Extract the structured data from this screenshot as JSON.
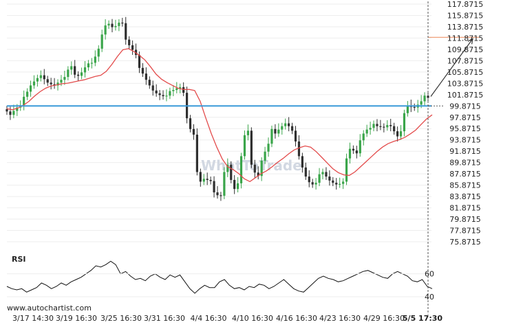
{
  "chart_data": [
    {
      "type": "candlestick",
      "title": "",
      "x_ticks": [
        "3/17 14:30",
        "3/19 16:30",
        "3/25 16:30",
        "3/31 16:30",
        "4/4 16:30",
        "4/10 16:30",
        "4/16 16:30",
        "4/23 16:30",
        "4/29 16:30",
        "5/5 17:30"
      ],
      "y_ticks": [
        "117.8715",
        "115.8715",
        "113.8715",
        "111.8715",
        "109.8715",
        "107.8715",
        "105.8715",
        "103.8715",
        "101.8715",
        "99.8715",
        "97.8715",
        "95.8715",
        "93.8715",
        "91.8715",
        "89.8715",
        "87.8715",
        "85.8715",
        "83.8715",
        "81.8715",
        "79.8715",
        "77.8715",
        "75.8715"
      ],
      "ylim": [
        75.8715,
        117.8715
      ],
      "price_series": [
        98.9,
        98.3,
        99.0,
        99.6,
        100.0,
        101.5,
        102.4,
        103.5,
        104.2,
        104.8,
        105.3,
        104.6,
        104.0,
        103.7,
        103.5,
        104.0,
        104.5,
        105.0,
        106.3,
        106.9,
        105.4,
        105.2,
        105.8,
        106.7,
        107.4,
        107.5,
        108.6,
        110.0,
        112.5,
        114.1,
        114.4,
        113.8,
        114.0,
        114.6,
        114.5,
        111.6,
        110.6,
        109.8,
        108.9,
        106.6,
        105.6,
        104.5,
        103.5,
        102.6,
        102.1,
        101.8,
        101.6,
        101.7,
        102.5,
        102.7,
        103.0,
        103.2,
        102.2,
        97.7,
        95.8,
        94.8,
        88.2,
        86.5,
        87.0,
        86.8,
        86.6,
        84.6,
        84.1,
        84.0,
        88.2,
        89.5,
        86.8,
        85.2,
        86.2,
        91.0,
        94.7,
        95.5,
        89.5,
        88.1,
        87.5,
        90.2,
        91.8,
        93.2,
        95.8,
        95.0,
        95.7,
        96.3,
        96.8,
        96.3,
        95.5,
        93.6,
        91.0,
        89.0,
        87.4,
        86.4,
        86.0,
        86.3,
        87.8,
        88.2,
        87.4,
        86.7,
        86.3,
        86.0,
        86.1,
        86.5,
        90.6,
        92.3,
        92.0,
        91.5,
        93.8,
        95.0,
        95.7,
        96.0,
        96.7,
        96.3,
        96.2,
        96.1,
        96.5,
        96.3,
        95.4,
        94.5,
        95.4,
        98.6,
        99.9,
        99.7,
        99.6,
        100.1,
        100.7,
        101.7,
        101.3
      ],
      "moving_average": [
        99.4,
        99.2,
        99.5,
        100.0,
        100.7,
        101.6,
        102.4,
        103.0,
        103.4,
        103.6,
        103.8,
        103.9,
        104.1,
        104.3,
        104.5,
        104.8,
        105.1,
        105.3,
        106.0,
        107.2,
        108.6,
        109.8,
        110.0,
        109.5,
        108.8,
        108.0,
        106.8,
        105.5,
        104.6,
        104.0,
        103.5,
        103.0,
        102.8,
        102.8,
        102.6,
        100.7,
        97.8,
        95.0,
        92.6,
        90.5,
        89.1,
        88.6,
        87.9,
        87.0,
        86.5,
        87.2,
        87.9,
        88.4,
        89.1,
        89.9,
        90.6,
        91.4,
        92.1,
        92.5,
        92.8,
        92.6,
        91.8,
        90.8,
        89.8,
        88.8,
        88.1,
        87.7,
        87.6,
        88.2,
        89.1,
        90.0,
        90.9,
        91.8,
        92.6,
        93.2,
        93.6,
        93.9,
        94.3,
        94.9,
        95.6,
        96.6,
        97.6,
        98.3
      ],
      "support_level": 99.8715,
      "target_level": 112.0,
      "rsi": {
        "label": "RSI",
        "y_ticks": [
          "60",
          "40"
        ],
        "ylim": [
          34,
          76
        ],
        "values": [
          49,
          47,
          46,
          47,
          44,
          46,
          48,
          52,
          50,
          47,
          49,
          52,
          50,
          53,
          55,
          57,
          60,
          63,
          67,
          66,
          68,
          71,
          68,
          60,
          62,
          58,
          55,
          56,
          54,
          58,
          60,
          57,
          55,
          59,
          57,
          59,
          53,
          47,
          43,
          47,
          50,
          48,
          48,
          53,
          55,
          50,
          47,
          48,
          46,
          49,
          48,
          51,
          50,
          47,
          49,
          52,
          55,
          51,
          47,
          45,
          44,
          48,
          52,
          56,
          58,
          56,
          55,
          53,
          54,
          56,
          58,
          60,
          62,
          63,
          61,
          59,
          57,
          56,
          60,
          62,
          60,
          58,
          54,
          53,
          55,
          49,
          47
        ]
      }
    }
  ],
  "branding": {
    "watermark": "WhatToTrade",
    "footer_url": "www.autochartist.com"
  },
  "colors": {
    "bull": "#3aa54a",
    "bear": "#2f2f2f",
    "sma": "#e34b4b",
    "support": "#3a9ad9",
    "target": "#f0a07a",
    "arrow": "#333333",
    "grid": "#eeeeee",
    "cursor": "#555555"
  }
}
